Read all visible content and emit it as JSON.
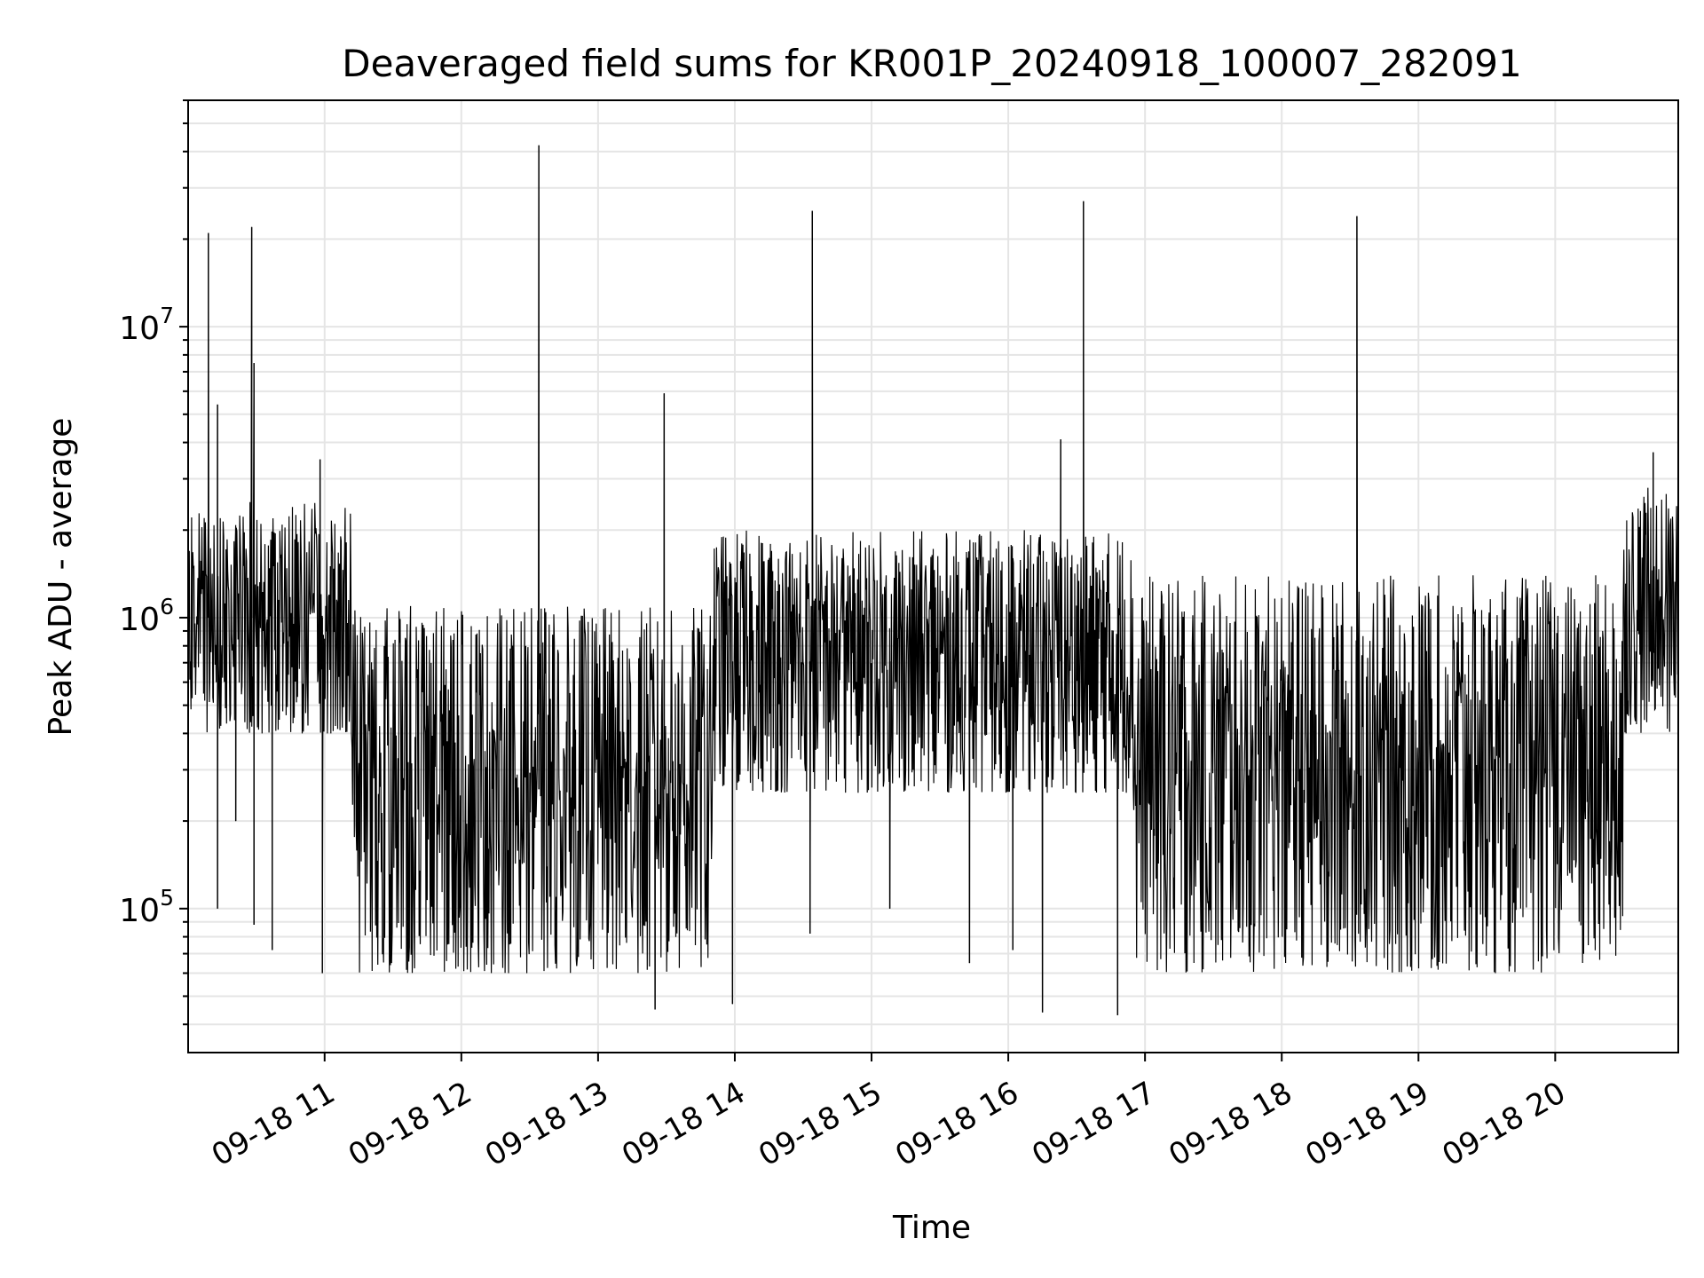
{
  "chart_data": {
    "type": "line",
    "title": "Deaveraged field sums for KR001P_20240918_100007_282091",
    "xlabel": "Time",
    "ylabel": "Peak ADU - average",
    "yscale": "log",
    "xlim": [
      "2024-09-18 10:00:07",
      "2024-09-18 20:54:00"
    ],
    "ylim": [
      32000,
      60000000
    ],
    "x_ticks": [
      {
        "label": "09-18 11",
        "value": "2024-09-18 11:00"
      },
      {
        "label": "09-18 12",
        "value": "2024-09-18 12:00"
      },
      {
        "label": "09-18 13",
        "value": "2024-09-18 13:00"
      },
      {
        "label": "09-18 14",
        "value": "2024-09-18 14:00"
      },
      {
        "label": "09-18 15",
        "value": "2024-09-18 15:00"
      },
      {
        "label": "09-18 16",
        "value": "2024-09-18 16:00"
      },
      {
        "label": "09-18 17",
        "value": "2024-09-18 17:00"
      },
      {
        "label": "09-18 18",
        "value": "2024-09-18 18:00"
      },
      {
        "label": "09-18 19",
        "value": "2024-09-18 19:00"
      },
      {
        "label": "09-18 20",
        "value": "2024-09-18 20:00"
      }
    ],
    "y_ticks": [
      {
        "base": "10",
        "exp": "5",
        "value": 100000
      },
      {
        "base": "10",
        "exp": "6",
        "value": 1000000
      },
      {
        "base": "10",
        "exp": "7",
        "value": 10000000
      }
    ],
    "grid": true,
    "line_color": "#000000",
    "grid_color": "#e5e5e5",
    "series": [
      {
        "segments": [
          {
            "start": "2024-09-18 10:00:07",
            "end": "2024-09-18 11:12",
            "low": 400000,
            "high": 2500000
          },
          {
            "start": "2024-09-18 11:12",
            "end": "2024-09-18 13:50",
            "low": 60000,
            "high": 1100000
          },
          {
            "start": "2024-09-18 13:50",
            "end": "2024-09-18 16:55",
            "low": 250000,
            "high": 2000000
          },
          {
            "start": "2024-09-18 16:55",
            "end": "2024-09-18 20:30",
            "low": 60000,
            "high": 1400000
          },
          {
            "start": "2024-09-18 20:30",
            "end": "2024-09-18 20:54:00",
            "low": 400000,
            "high": 2800000
          }
        ],
        "spikes": [
          {
            "time": "2024-09-18 10:09",
            "value": 21000000
          },
          {
            "time": "2024-09-18 10:13",
            "value": 5400000
          },
          {
            "time": "2024-09-18 10:13",
            "value": 100000
          },
          {
            "time": "2024-09-18 10:21",
            "value": 200000
          },
          {
            "time": "2024-09-18 10:28",
            "value": 22000000
          },
          {
            "time": "2024-09-18 10:29",
            "value": 7500000
          },
          {
            "time": "2024-09-18 10:29",
            "value": 88000
          },
          {
            "time": "2024-09-18 10:37",
            "value": 72000
          },
          {
            "time": "2024-09-18 10:58",
            "value": 3500000
          },
          {
            "time": "2024-09-18 10:59",
            "value": 60000
          },
          {
            "time": "2024-09-18 12:34",
            "value": 42000000
          },
          {
            "time": "2024-09-18 13:25",
            "value": 45000
          },
          {
            "time": "2024-09-18 13:29",
            "value": 5900000
          },
          {
            "time": "2024-09-18 13:59",
            "value": 47000
          },
          {
            "time": "2024-09-18 14:33",
            "value": 82000
          },
          {
            "time": "2024-09-18 14:34",
            "value": 25000000
          },
          {
            "time": "2024-09-18 15:08",
            "value": 100000
          },
          {
            "time": "2024-09-18 15:43",
            "value": 65000
          },
          {
            "time": "2024-09-18 16:02",
            "value": 72000
          },
          {
            "time": "2024-09-18 16:15",
            "value": 44000
          },
          {
            "time": "2024-09-18 16:23",
            "value": 4100000
          },
          {
            "time": "2024-09-18 16:33",
            "value": 27000000
          },
          {
            "time": "2024-09-18 16:48",
            "value": 43000
          },
          {
            "time": "2024-09-18 18:33",
            "value": 24000000
          },
          {
            "time": "2024-09-18 20:43",
            "value": 3700000
          }
        ]
      }
    ]
  }
}
